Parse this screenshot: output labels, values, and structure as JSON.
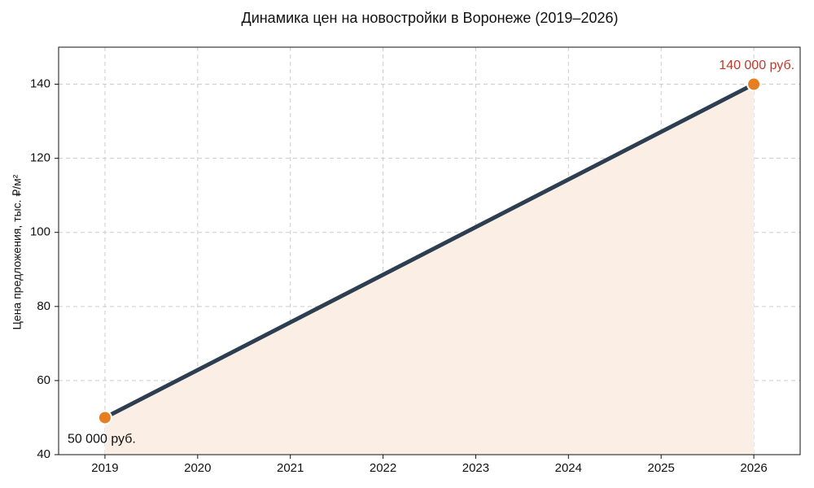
{
  "chart_data": {
    "type": "line",
    "title": "Динамика цен на новостройки в Воронеже (2019–2026)",
    "y_label": "Цена предложения, тыс. ₽/м²",
    "x": [
      2019,
      2026
    ],
    "values": [
      50,
      140
    ],
    "value_labels": [
      "50 000 руб.",
      "140 000 руб."
    ],
    "value_label_colors": [
      "#111111",
      "#c0392b"
    ],
    "color": "#2c3e50",
    "marker_color": "#e67e22",
    "area_color": "#fbeee5",
    "xlim": [
      2018.5,
      2026.5
    ],
    "xticks": [
      2019,
      2020,
      2021,
      2022,
      2023,
      2024,
      2025,
      2026
    ],
    "ylim": [
      40,
      150
    ],
    "yticks": [
      40,
      60,
      80,
      100,
      120,
      140
    ],
    "grid": true
  }
}
